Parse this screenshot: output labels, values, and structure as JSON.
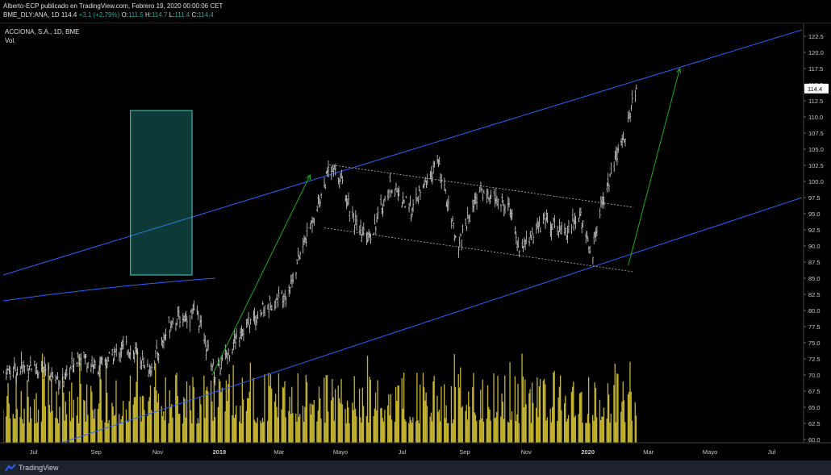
{
  "header": {
    "publisher": "Alberto-ECP publicado en TradingView.com, Febrero 19, 2020 00:00:06 CET",
    "ticker": "BME_DLY:ANA, 1D",
    "last": "114.4",
    "change": "+3.1 (+2.79%)",
    "o_label": "O:",
    "o_value": "111.5",
    "h_label": "H:",
    "h_value": "114.7",
    "l_label": "L:",
    "l_value": "111.4",
    "c_label": "C:",
    "c_value": "114.4"
  },
  "legend": {
    "symbol": "ACCIONA, S.A., 1D, BME",
    "volume": "Vol."
  },
  "footer": {
    "brand": "TradingView"
  },
  "colors": {
    "background": "#000000",
    "bars": "#cfcfcf",
    "volume": "#e6d23c",
    "channel": "#2962ff",
    "arrow": "#1faa1f",
    "box": "#26a69a"
  },
  "chart_data": {
    "type": "bar",
    "subtype": "ohlc",
    "symbol": "ACCIONA, S.A., 1D, BME",
    "ylim": [
      59.5,
      124.5
    ],
    "y_ticks": [
      "122.5",
      "120.0",
      "117.5",
      "115.0",
      "112.5",
      "110.0",
      "107.5",
      "105.0",
      "102.5",
      "100.0",
      "97.5",
      "95.0",
      "92.5",
      "90.0",
      "87.5",
      "85.0",
      "82.5",
      "80.0",
      "77.5",
      "75.0",
      "72.5",
      "70.0",
      "67.5",
      "65.0",
      "62.5",
      "60.0"
    ],
    "x_ticks": [
      "Jul",
      "Sep",
      "Nov",
      "2019",
      "Mar",
      "Mayo",
      "Jul",
      "Sep",
      "Nov",
      "2020",
      "Mar",
      "Mayo",
      "Jul"
    ],
    "x_range": [
      "2018-06-01",
      "2020-07-31"
    ],
    "x_ticks_dates": [
      "2018-07-01",
      "2018-09-01",
      "2018-11-01",
      "2019-01-01",
      "2019-03-01",
      "2019-05-01",
      "2019-07-01",
      "2019-09-01",
      "2019-11-01",
      "2020-01-01",
      "2020-03-01",
      "2020-05-01",
      "2020-07-01"
    ],
    "price_label": "114.4",
    "last_date": "2020-02-18",
    "close_anchors": [
      [
        "2018-06-01",
        70.5
      ],
      [
        "2018-07-01",
        71.5
      ],
      [
        "2018-08-01",
        69.0
      ],
      [
        "2018-08-15",
        73.5
      ],
      [
        "2018-09-01",
        71.0
      ],
      [
        "2018-10-01",
        74.5
      ],
      [
        "2018-10-25",
        71.0
      ],
      [
        "2018-11-15",
        78.5
      ],
      [
        "2018-12-10",
        79.5
      ],
      [
        "2018-12-28",
        70.0
      ],
      [
        "2019-01-20",
        76.5
      ],
      [
        "2019-02-20",
        81.0
      ],
      [
        "2019-03-10",
        83.0
      ],
      [
        "2019-03-25",
        90.0
      ],
      [
        "2019-04-10",
        97.0
      ],
      [
        "2019-04-20",
        102.0
      ],
      [
        "2019-05-01",
        100.5
      ],
      [
        "2019-05-20",
        91.5
      ],
      [
        "2019-06-01",
        92.0
      ],
      [
        "2019-06-20",
        99.5
      ],
      [
        "2019-07-10",
        95.5
      ],
      [
        "2019-08-05",
        103.0
      ],
      [
        "2019-08-25",
        90.0
      ],
      [
        "2019-09-15",
        98.5
      ],
      [
        "2019-10-15",
        96.0
      ],
      [
        "2019-10-25",
        89.5
      ],
      [
        "2019-11-20",
        94.0
      ],
      [
        "2019-12-10",
        92.5
      ],
      [
        "2019-12-25",
        94.5
      ],
      [
        "2020-01-01",
        90.5
      ],
      [
        "2020-01-05",
        88.0
      ],
      [
        "2020-01-12",
        95.0
      ],
      [
        "2020-01-25",
        101.5
      ],
      [
        "2020-02-08",
        108.0
      ],
      [
        "2020-02-18",
        114.4
      ]
    ],
    "drawings": {
      "upper_channel": [
        [
          "2018-06-01",
          85.5
        ],
        [
          "2020-07-31",
          123.5
        ]
      ],
      "lower_channel": [
        [
          "2018-06-01",
          56.5
        ],
        [
          "2020-07-31",
          97.5
        ]
      ],
      "lower_curve": [
        [
          "2018-06-01",
          81.5
        ],
        [
          "2018-12-28",
          85.0
        ]
      ],
      "flag_top": [
        [
          "2019-04-20",
          102.6
        ],
        [
          "2020-02-15",
          96.0
        ]
      ],
      "flag_bottom": [
        [
          "2019-04-15",
          92.8
        ],
        [
          "2020-02-15",
          86.0
        ]
      ],
      "arrow_1": [
        [
          "2018-12-25",
          70.0
        ],
        [
          "2019-04-01",
          101.0
        ]
      ],
      "arrow_2": [
        [
          "2020-02-10",
          87.0
        ],
        [
          "2020-04-01",
          117.5
        ]
      ],
      "box": {
        "from": "2018-10-05",
        "to": "2018-12-05",
        "ymin": 85.5,
        "ymax": 111.0
      }
    }
  }
}
